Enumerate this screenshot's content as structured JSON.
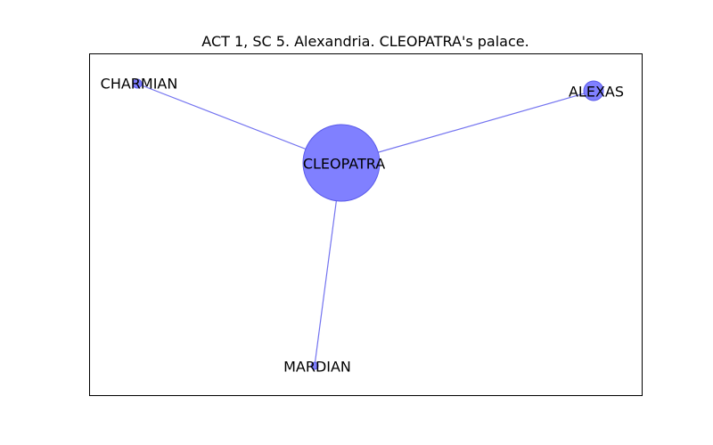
{
  "title": "ACT 1, SC 5. Alexandria. CLEOPATRA's palace.",
  "colors": {
    "node_fill": "#8080ff",
    "node_stroke": "#5b5bea",
    "edge": "#7373f0",
    "frame": "#000000"
  },
  "nodes": [
    {
      "id": "CLEOPATRA",
      "label": "CLEOPATRA"
    },
    {
      "id": "CHARMIAN",
      "label": "CHARMIAN"
    },
    {
      "id": "ALEXAS",
      "label": "ALEXAS"
    },
    {
      "id": "MARDIAN",
      "label": "MARDIAN"
    }
  ],
  "edges": [
    {
      "source": "CLEOPATRA",
      "target": "CHARMIAN"
    },
    {
      "source": "CLEOPATRA",
      "target": "ALEXAS"
    },
    {
      "source": "CLEOPATRA",
      "target": "MARDIAN"
    }
  ]
}
